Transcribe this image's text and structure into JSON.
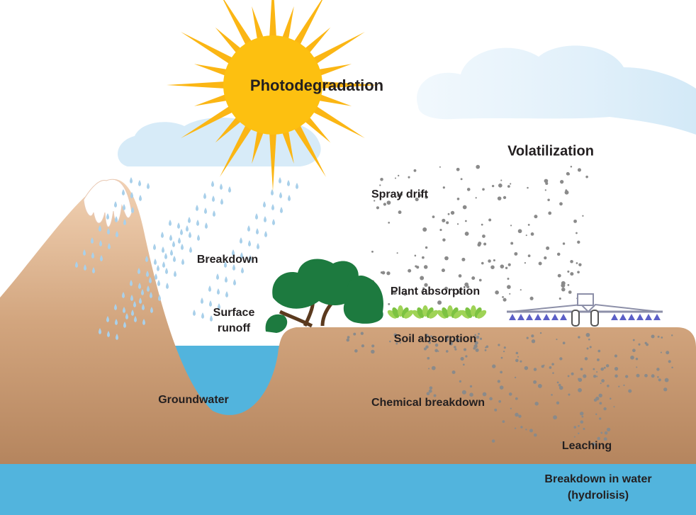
{
  "labels": {
    "photodegradation": "Photodegradation",
    "volatilization": "Volatilization",
    "spray_drift": "Spray drift",
    "breakdown": "Breakdown",
    "surface_runoff": [
      "Surface",
      "runoff"
    ],
    "plant_absorption": "Plant absorption",
    "soil_absorption": "Soil absorption",
    "groundwater": "Groundwater",
    "chemical_breakdown": "Chemical breakdown",
    "leaching": "Leaching",
    "breakdown_in_water": [
      "Breakdown in water",
      "(hydrolisis)"
    ]
  }
}
